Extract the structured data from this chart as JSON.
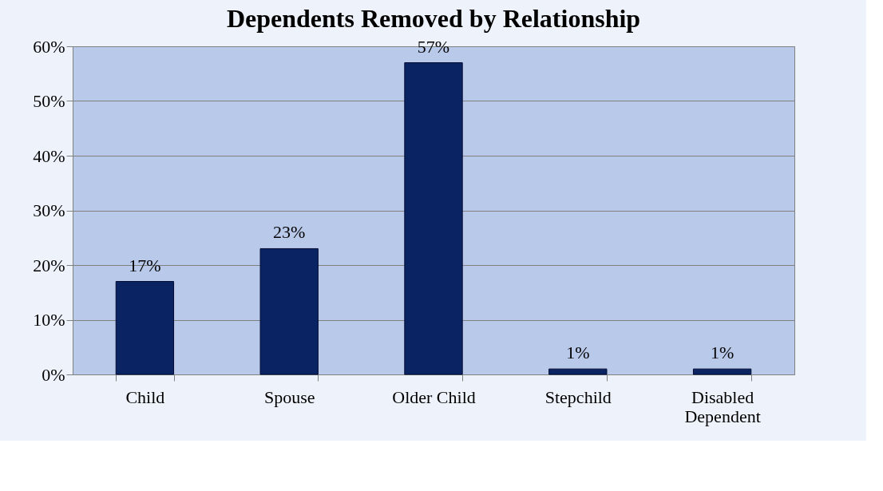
{
  "chart_data": {
    "type": "bar",
    "title": "Dependents Removed by Relationship",
    "categories": [
      "Child",
      "Spouse",
      "Older Child",
      "Stepchild",
      "Disabled Dependent"
    ],
    "values": [
      17,
      23,
      57,
      1,
      1
    ],
    "value_labels": [
      "17%",
      "23%",
      "57%",
      "1%",
      "1%"
    ],
    "color": "#0a2463",
    "ylim": [
      0,
      60
    ],
    "yticks": [
      {
        "value": 0,
        "label": "0%"
      },
      {
        "value": 10,
        "label": "10%"
      },
      {
        "value": 20,
        "label": "20%"
      },
      {
        "value": 30,
        "label": "30%"
      },
      {
        "value": 40,
        "label": "40%"
      },
      {
        "value": 50,
        "label": "50%"
      },
      {
        "value": 60,
        "label": "60%"
      }
    ],
    "grid": "y"
  }
}
